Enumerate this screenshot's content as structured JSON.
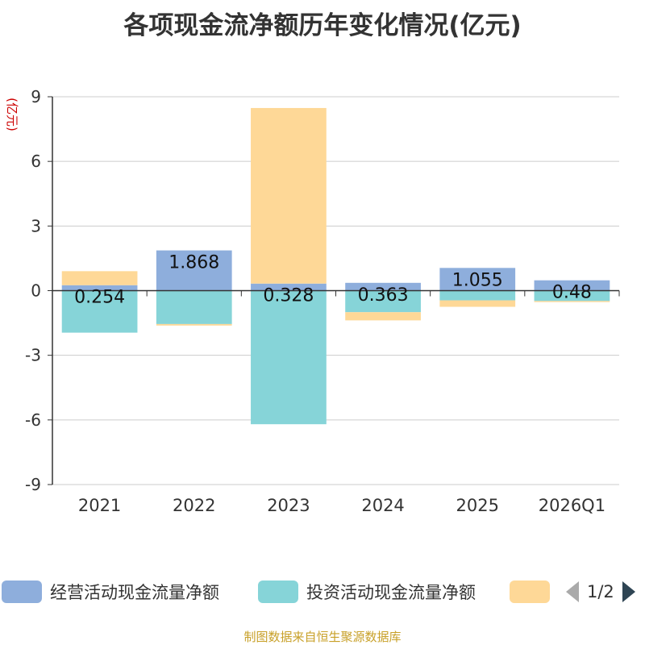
{
  "title": "各项现金流净额历年变化情况(亿元)",
  "source_note": "制图数据来自恒生聚源数据库",
  "pager": {
    "text": "1/2",
    "prev_icon": "triangle-left-icon",
    "next_icon": "triangle-right-icon"
  },
  "colors": {
    "operating": "#8eaedc",
    "investing": "#86d4d8",
    "financing": "#fed897",
    "ylabel": "#cc0000",
    "source": "#c8a028"
  },
  "chart_data": {
    "type": "bar",
    "stacked": true,
    "ylabel": "(亿元)",
    "ylim": [
      -9,
      9
    ],
    "yticks": [
      -9,
      -6,
      -3,
      0,
      3,
      6,
      9
    ],
    "grid": true,
    "legend_position": "bottom",
    "categories": [
      "2021",
      "2022",
      "2023",
      "2024",
      "2025",
      "2026Q1"
    ],
    "series": [
      {
        "name": "经营活动现金流量净额",
        "values": [
          0.254,
          1.868,
          0.328,
          0.363,
          1.055,
          0.48
        ],
        "labels": [
          "0.254",
          "1.868",
          "0.328",
          "0.363",
          "1.055",
          "0.48"
        ]
      },
      {
        "name": "投资活动现金流量净额",
        "values": [
          -1.95,
          -1.55,
          -6.2,
          -1.0,
          -0.45,
          -0.48
        ]
      },
      {
        "name": "",
        "values": [
          0.65,
          -0.07,
          8.15,
          -0.38,
          -0.3,
          -0.05
        ]
      }
    ]
  }
}
